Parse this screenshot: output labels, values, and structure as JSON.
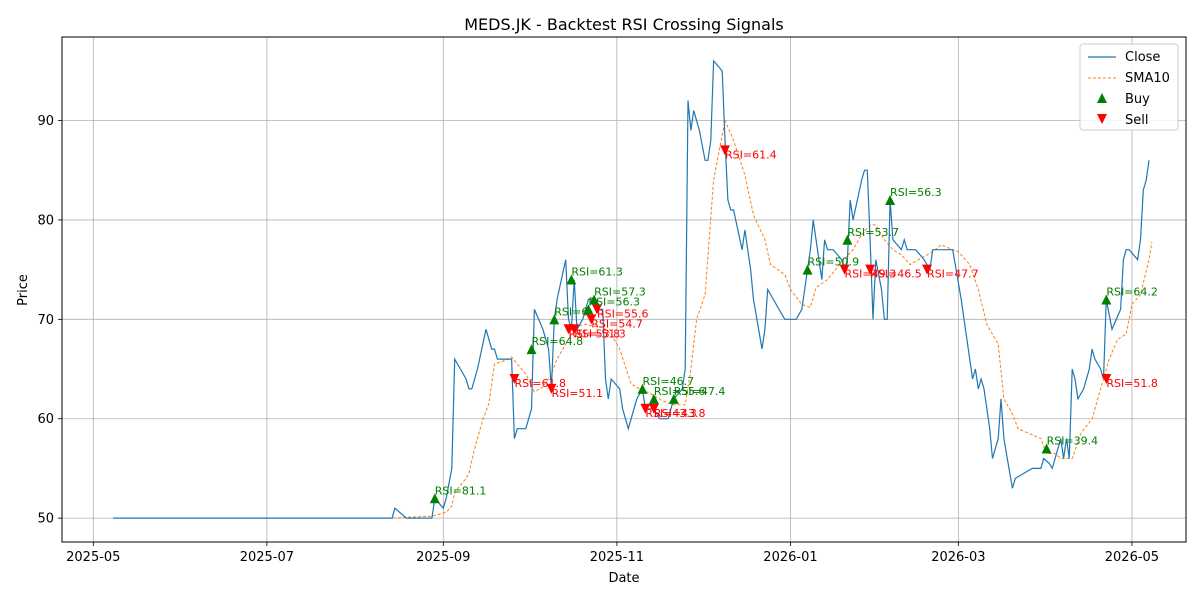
{
  "chart_data": {
    "type": "line",
    "title": "MEDS.JK - Backtest RSI Crossing Signals",
    "xlabel": "Date",
    "ylabel": "Price",
    "xlim": [
      "2025-04-20",
      "2026-05-20"
    ],
    "ylim": [
      47.6,
      98.4
    ],
    "grid": true,
    "legend_position": "top-right",
    "x_ticks": [
      "2025-05",
      "2025-07",
      "2025-09",
      "2025-11",
      "2026-01",
      "2026-03",
      "2026-05"
    ],
    "y_ticks": [
      50,
      60,
      70,
      80,
      90
    ],
    "colors": {
      "close": "#1f77b4",
      "sma": "#ff7f0e",
      "buy": "#008000",
      "sell": "#ff0000"
    },
    "legend": [
      "Close",
      "SMA10",
      "Buy",
      "Sell"
    ],
    "close": [
      [
        "2025-05-08",
        50
      ],
      [
        "2025-05-22",
        50
      ],
      [
        "2025-06-15",
        50
      ],
      [
        "2025-07-15",
        50
      ],
      [
        "2025-08-14",
        50
      ],
      [
        "2025-08-15",
        51
      ],
      [
        "2025-08-19",
        50
      ],
      [
        "2025-08-28",
        50
      ],
      [
        "2025-08-29",
        52
      ],
      [
        "2025-09-01",
        51
      ],
      [
        "2025-09-02",
        52
      ],
      [
        "2025-09-04",
        55
      ],
      [
        "2025-09-05",
        66
      ],
      [
        "2025-09-09",
        64
      ],
      [
        "2025-09-10",
        63
      ],
      [
        "2025-09-11",
        63
      ],
      [
        "2025-09-13",
        65
      ],
      [
        "2025-09-16",
        69
      ],
      [
        "2025-09-18",
        67
      ],
      [
        "2025-09-19",
        67
      ],
      [
        "2025-09-20",
        66
      ],
      [
        "2025-09-25",
        66
      ],
      [
        "2025-09-26",
        58
      ],
      [
        "2025-09-27",
        59
      ],
      [
        "2025-09-30",
        59
      ],
      [
        "2025-10-02",
        61
      ],
      [
        "2025-10-03",
        71
      ],
      [
        "2025-10-06",
        69
      ],
      [
        "2025-10-08",
        67
      ],
      [
        "2025-10-09",
        63
      ],
      [
        "2025-10-10",
        70
      ],
      [
        "2025-10-11",
        72
      ],
      [
        "2025-10-14",
        76
      ],
      [
        "2025-10-15",
        70
      ],
      [
        "2025-10-16",
        69
      ],
      [
        "2025-10-17",
        74
      ],
      [
        "2025-10-18",
        69
      ],
      [
        "2025-10-20",
        70
      ],
      [
        "2025-10-21",
        71
      ],
      [
        "2025-10-22",
        72
      ],
      [
        "2025-10-23",
        72
      ],
      [
        "2025-10-25",
        71
      ],
      [
        "2025-10-27",
        71
      ],
      [
        "2025-10-28",
        64
      ],
      [
        "2025-10-29",
        62
      ],
      [
        "2025-10-30",
        64
      ],
      [
        "2025-11-02",
        63
      ],
      [
        "2025-11-03",
        61
      ],
      [
        "2025-11-05",
        59
      ],
      [
        "2025-11-08",
        62
      ],
      [
        "2025-11-10",
        63
      ],
      [
        "2025-11-11",
        61
      ],
      [
        "2025-11-14",
        61
      ],
      [
        "2025-11-16",
        60
      ],
      [
        "2025-11-19",
        60
      ],
      [
        "2025-11-21",
        62
      ],
      [
        "2025-11-24",
        63
      ],
      [
        "2025-11-25",
        65
      ],
      [
        "2025-11-26",
        92
      ],
      [
        "2025-11-27",
        89
      ],
      [
        "2025-11-28",
        91
      ],
      [
        "2025-11-30",
        89
      ],
      [
        "2025-12-02",
        86
      ],
      [
        "2025-12-03",
        86
      ],
      [
        "2025-12-04",
        88
      ],
      [
        "2025-12-05",
        96
      ],
      [
        "2025-12-08",
        95
      ],
      [
        "2025-12-09",
        88
      ],
      [
        "2025-12-10",
        82
      ],
      [
        "2025-12-11",
        81
      ],
      [
        "2025-12-12",
        81
      ],
      [
        "2025-12-15",
        77
      ],
      [
        "2025-12-16",
        79
      ],
      [
        "2025-12-18",
        75
      ],
      [
        "2025-12-19",
        72
      ],
      [
        "2025-12-22",
        67
      ],
      [
        "2025-12-23",
        69
      ],
      [
        "2025-12-24",
        73
      ],
      [
        "2025-12-28",
        71
      ],
      [
        "2025-12-30",
        70
      ],
      [
        "2026-01-03",
        70
      ],
      [
        "2026-01-05",
        71
      ],
      [
        "2026-01-08",
        77
      ],
      [
        "2026-01-09",
        80
      ],
      [
        "2026-01-12",
        74
      ],
      [
        "2026-01-13",
        78
      ],
      [
        "2026-01-14",
        77
      ],
      [
        "2026-01-16",
        77
      ],
      [
        "2026-01-19",
        76
      ],
      [
        "2026-01-20",
        75
      ],
      [
        "2026-01-21",
        76
      ],
      [
        "2026-01-22",
        82
      ],
      [
        "2026-01-23",
        80
      ],
      [
        "2026-01-26",
        84
      ],
      [
        "2026-01-27",
        85
      ],
      [
        "2026-01-28",
        85
      ],
      [
        "2026-01-29",
        78
      ],
      [
        "2026-01-30",
        70
      ],
      [
        "2026-01-31",
        76
      ],
      [
        "2026-02-02",
        73
      ],
      [
        "2026-02-03",
        70
      ],
      [
        "2026-02-04",
        70
      ],
      [
        "2026-02-05",
        82
      ],
      [
        "2026-02-06",
        78
      ],
      [
        "2026-02-09",
        77
      ],
      [
        "2026-02-10",
        78
      ],
      [
        "2026-02-11",
        77
      ],
      [
        "2026-02-14",
        77
      ],
      [
        "2026-02-17",
        76
      ],
      [
        "2026-02-19",
        75
      ],
      [
        "2026-02-20",
        77
      ],
      [
        "2026-02-22",
        77
      ],
      [
        "2026-02-27",
        77
      ],
      [
        "2026-03-02",
        72
      ],
      [
        "2026-03-05",
        66
      ],
      [
        "2026-03-06",
        64
      ],
      [
        "2026-03-07",
        65
      ],
      [
        "2026-03-08",
        63
      ],
      [
        "2026-03-09",
        64
      ],
      [
        "2026-03-10",
        63
      ],
      [
        "2026-03-12",
        59
      ],
      [
        "2026-03-13",
        56
      ],
      [
        "2026-03-15",
        58
      ],
      [
        "2026-03-16",
        62
      ],
      [
        "2026-03-17",
        58
      ],
      [
        "2026-03-20",
        53
      ],
      [
        "2026-03-21",
        54
      ],
      [
        "2026-03-24",
        54.5
      ],
      [
        "2026-03-27",
        55
      ],
      [
        "2026-03-30",
        55
      ],
      [
        "2026-03-31",
        56
      ],
      [
        "2026-04-02",
        55.5
      ],
      [
        "2026-04-03",
        55
      ],
      [
        "2026-04-05",
        57
      ],
      [
        "2026-04-06",
        58
      ],
      [
        "2026-04-07",
        56
      ],
      [
        "2026-04-08",
        58
      ],
      [
        "2026-04-09",
        56
      ],
      [
        "2026-04-10",
        65
      ],
      [
        "2026-04-11",
        64
      ],
      [
        "2026-04-12",
        62
      ],
      [
        "2026-04-14",
        63
      ],
      [
        "2026-04-16",
        65
      ],
      [
        "2026-04-17",
        67
      ],
      [
        "2026-04-18",
        66
      ],
      [
        "2026-04-20",
        65
      ],
      [
        "2026-04-21",
        64
      ],
      [
        "2026-04-22",
        72
      ],
      [
        "2026-04-24",
        69
      ],
      [
        "2026-04-27",
        71
      ],
      [
        "2026-04-28",
        76
      ],
      [
        "2026-04-29",
        77
      ],
      [
        "2026-04-30",
        77
      ],
      [
        "2026-05-03",
        76
      ],
      [
        "2026-05-04",
        78
      ],
      [
        "2026-05-05",
        83
      ],
      [
        "2026-05-06",
        84
      ],
      [
        "2026-05-07",
        86
      ]
    ],
    "sma10": [
      [
        "2025-05-22",
        50
      ],
      [
        "2025-08-14",
        50
      ],
      [
        "2025-08-20",
        50.1
      ],
      [
        "2025-08-28",
        50.2
      ],
      [
        "2025-09-02",
        50.6
      ],
      [
        "2025-09-04",
        51.2
      ],
      [
        "2025-09-05",
        52.6
      ],
      [
        "2025-09-09",
        54
      ],
      [
        "2025-09-10",
        54.5
      ],
      [
        "2025-09-12",
        57
      ],
      [
        "2025-09-15",
        60
      ],
      [
        "2025-09-17",
        61.5
      ],
      [
        "2025-09-19",
        65.5
      ],
      [
        "2025-09-22",
        65.8
      ],
      [
        "2025-09-25",
        66.2
      ],
      [
        "2025-09-30",
        64.5
      ],
      [
        "2025-10-03",
        62.7
      ],
      [
        "2025-10-06",
        63.2
      ],
      [
        "2025-10-09",
        64.5
      ],
      [
        "2025-10-11",
        66
      ],
      [
        "2025-10-14",
        67.5
      ],
      [
        "2025-10-16",
        68.5
      ],
      [
        "2025-10-18",
        69.3
      ],
      [
        "2025-10-21",
        69.5
      ],
      [
        "2025-10-24",
        69.3
      ],
      [
        "2025-10-27",
        69.2
      ],
      [
        "2025-10-30",
        68.5
      ],
      [
        "2025-11-02",
        67
      ],
      [
        "2025-11-06",
        63.5
      ],
      [
        "2025-11-09",
        63
      ],
      [
        "2025-11-13",
        62.5
      ],
      [
        "2025-11-17",
        61.8
      ],
      [
        "2025-11-21",
        61.4
      ],
      [
        "2025-11-25",
        61.4
      ],
      [
        "2025-11-27",
        65
      ],
      [
        "2025-11-29",
        70
      ],
      [
        "2025-12-02",
        72.5
      ],
      [
        "2025-12-05",
        84
      ],
      [
        "2025-12-09",
        90
      ],
      [
        "2025-12-12",
        88
      ],
      [
        "2025-12-16",
        84.5
      ],
      [
        "2025-12-19",
        80.5
      ],
      [
        "2025-12-23",
        78
      ],
      [
        "2025-12-25",
        75.5
      ],
      [
        "2025-12-30",
        74.5
      ],
      [
        "2026-01-01",
        73
      ],
      [
        "2026-01-05",
        71.5
      ],
      [
        "2026-01-08",
        71.2
      ],
      [
        "2026-01-10",
        73.2
      ],
      [
        "2026-01-14",
        74
      ],
      [
        "2026-01-19",
        75.8
      ],
      [
        "2026-01-23",
        77
      ],
      [
        "2026-01-26",
        78.5
      ],
      [
        "2026-01-29",
        79.5
      ],
      [
        "2026-01-31",
        79.5
      ],
      [
        "2026-02-03",
        78
      ],
      [
        "2026-02-06",
        77
      ],
      [
        "2026-02-09",
        76.5
      ],
      [
        "2026-02-12",
        75.5
      ],
      [
        "2026-02-15",
        76
      ],
      [
        "2026-02-20",
        76.8
      ],
      [
        "2026-02-23",
        77.5
      ],
      [
        "2026-02-27",
        77
      ],
      [
        "2026-03-01",
        76.8
      ],
      [
        "2026-03-05",
        75.5
      ],
      [
        "2026-03-08",
        73
      ],
      [
        "2026-03-11",
        69.5
      ],
      [
        "2026-03-15",
        67.5
      ],
      [
        "2026-03-17",
        62
      ],
      [
        "2026-03-20",
        60.5
      ],
      [
        "2026-03-22",
        59
      ],
      [
        "2026-03-26",
        58.5
      ],
      [
        "2026-03-30",
        58
      ],
      [
        "2026-04-01",
        56.5
      ],
      [
        "2026-04-04",
        56.5
      ],
      [
        "2026-04-06",
        56
      ],
      [
        "2026-04-10",
        56
      ],
      [
        "2026-04-13",
        58.5
      ],
      [
        "2026-04-17",
        60
      ],
      [
        "2026-04-20",
        63
      ],
      [
        "2026-04-23",
        66
      ],
      [
        "2026-04-26",
        68
      ],
      [
        "2026-04-29",
        68.5
      ],
      [
        "2026-05-01",
        71.5
      ],
      [
        "2026-05-04",
        72.5
      ],
      [
        "2026-05-07",
        76
      ],
      [
        "2026-05-08",
        77.8
      ]
    ],
    "buy_signals": [
      {
        "date": "2025-08-29",
        "price": 52,
        "label": "RSI=81.1"
      },
      {
        "date": "2025-10-02",
        "price": 67,
        "label": "RSI=64.8"
      },
      {
        "date": "2025-10-10",
        "price": 70,
        "label": "RSI=6"
      },
      {
        "date": "2025-10-16",
        "price": 74,
        "label": "RSI=61.3"
      },
      {
        "date": "2025-10-22",
        "price": 71,
        "label": "RSI=56.3"
      },
      {
        "date": "2025-10-24",
        "price": 72,
        "label": "RSI=57.3"
      },
      {
        "date": "2025-11-10",
        "price": 63,
        "label": "RSI=46.7"
      },
      {
        "date": "2025-11-14",
        "price": 62,
        "label": "RSI=55.6"
      },
      {
        "date": "2025-11-21",
        "price": 62,
        "label": "RSI=47.4"
      },
      {
        "date": "2026-01-07",
        "price": 75,
        "label": "RSI=50.9"
      },
      {
        "date": "2026-01-21",
        "price": 78,
        "label": "RSI=53.7"
      },
      {
        "date": "2026-02-05",
        "price": 82,
        "label": "RSI=56.3"
      },
      {
        "date": "2026-04-01",
        "price": 57,
        "label": "RSI=39.4"
      },
      {
        "date": "2026-04-22",
        "price": 72,
        "label": "RSI=64.2"
      }
    ],
    "sell_signals": [
      {
        "date": "2025-09-26",
        "price": 64,
        "label": "RSI=61.8"
      },
      {
        "date": "2025-10-09",
        "price": 63,
        "label": "RSI=51.1"
      },
      {
        "date": "2025-10-15",
        "price": 69,
        "label": "RSI=53.8"
      },
      {
        "date": "2025-10-17",
        "price": 69,
        "label": "RSI=51.3"
      },
      {
        "date": "2025-10-23",
        "price": 70,
        "label": "RSI=54.7"
      },
      {
        "date": "2025-10-25",
        "price": 71,
        "label": "RSI=55.6"
      },
      {
        "date": "2025-11-11",
        "price": 61,
        "label": "RSI=43.3"
      },
      {
        "date": "2025-11-14",
        "price": 61,
        "label": "RSI=43.8"
      },
      {
        "date": "2025-12-09",
        "price": 87,
        "label": "RSI=61.4"
      },
      {
        "date": "2026-01-20",
        "price": 75,
        "label": "RSI=49.3"
      },
      {
        "date": "2026-01-29",
        "price": 75,
        "label": "RSI=46.5"
      },
      {
        "date": "2026-02-18",
        "price": 75,
        "label": "RSI=47.7"
      },
      {
        "date": "2026-04-22",
        "price": 64,
        "label": "RSI=51.8"
      }
    ]
  }
}
